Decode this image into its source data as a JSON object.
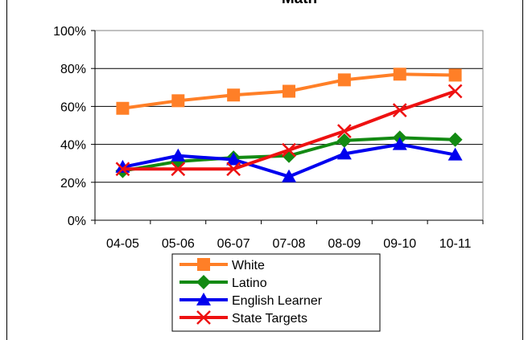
{
  "chart_data": {
    "type": "line",
    "title": "Math",
    "xlabel": "",
    "ylabel": "",
    "categories": [
      "04-05",
      "05-06",
      "06-07",
      "07-08",
      "08-09",
      "09-10",
      "10-11"
    ],
    "ylim": [
      0,
      100
    ],
    "yticks": [
      "0%",
      "20%",
      "40%",
      "60%",
      "80%",
      "100%"
    ],
    "ytick_values": [
      0,
      20,
      40,
      60,
      80,
      100
    ],
    "grid": true,
    "legend_position": "bottom",
    "series": [
      {
        "name": "White",
        "color": "#ff7f27",
        "marker": "square",
        "values": [
          59,
          63,
          66,
          68,
          74,
          77,
          76.5
        ]
      },
      {
        "name": "Latino",
        "color": "#138a13",
        "marker": "diamond",
        "values": [
          26,
          31,
          33,
          34,
          42,
          43.5,
          42.5
        ]
      },
      {
        "name": "English Learner",
        "color": "#0000ee",
        "marker": "triangle",
        "values": [
          28,
          34,
          32,
          23,
          35,
          40,
          34.5
        ]
      },
      {
        "name": "State Targets",
        "color": "#ee1111",
        "marker": "x",
        "values": [
          27,
          27,
          27,
          37,
          47,
          58,
          68
        ]
      }
    ]
  }
}
